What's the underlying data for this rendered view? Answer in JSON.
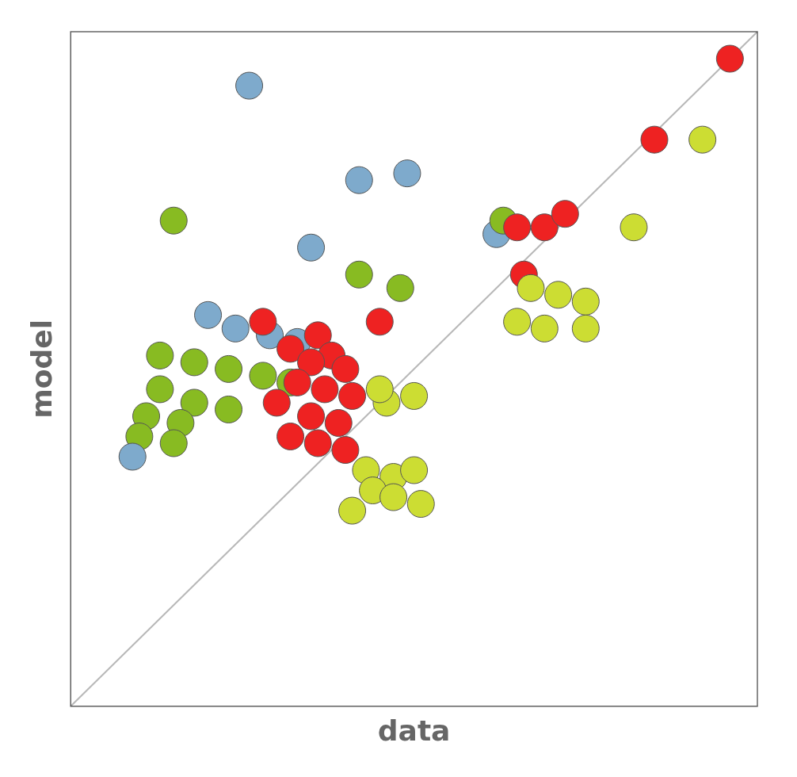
{
  "chart_data": {
    "type": "scatter",
    "xlabel": "data",
    "ylabel": "model",
    "xlim": [
      0,
      10
    ],
    "ylim": [
      0,
      10
    ],
    "xticks": [],
    "yticks": [],
    "tick_labels": false,
    "grid": false,
    "x": [
      2.6,
      1.5,
      4.2,
      4.9,
      3.5,
      4.2,
      4.8,
      2.0,
      2.4,
      2.9,
      3.3,
      1.3,
      1.8,
      2.3,
      2.8,
      3.2,
      1.3,
      1.8,
      2.3,
      1.1,
      1.6,
      1.0,
      1.5,
      0.9,
      2.8,
      3.6,
      3.2,
      3.8,
      3.5,
      4.0,
      3.3,
      3.7,
      4.1,
      3.0,
      3.5,
      3.9,
      4.5,
      3.2,
      3.6,
      4.0,
      4.6,
      4.3,
      4.7,
      5.0,
      4.4,
      4.7,
      5.1,
      4.1,
      4.5,
      5.0,
      6.2,
      6.3,
      6.5,
      6.9,
      7.2,
      8.2,
      6.6,
      6.7,
      7.1,
      7.5,
      6.5,
      6.9,
      7.5,
      8.5,
      9.2,
      9.6
    ],
    "values": [
      9.2,
      7.2,
      7.8,
      7.9,
      6.8,
      6.4,
      6.2,
      5.8,
      5.6,
      5.5,
      5.4,
      5.2,
      5.1,
      5.0,
      4.9,
      4.8,
      4.7,
      4.5,
      4.4,
      4.3,
      4.2,
      4.0,
      3.9,
      3.7,
      5.7,
      5.5,
      5.3,
      5.2,
      5.1,
      5.0,
      4.8,
      4.7,
      4.6,
      4.5,
      4.3,
      4.2,
      5.7,
      4.0,
      3.9,
      3.8,
      4.5,
      3.5,
      3.4,
      3.5,
      3.2,
      3.1,
      3.0,
      2.9,
      4.7,
      4.6,
      7.0,
      7.2,
      7.1,
      7.1,
      7.3,
      7.1,
      6.4,
      6.2,
      6.1,
      6.0,
      5.7,
      5.6,
      5.6,
      8.4,
      8.4,
      9.6
    ],
    "colors": [
      "#7eaacc",
      "#88bb22",
      "#7eaacc",
      "#7eaacc",
      "#7eaacc",
      "#88bb22",
      "#88bb22",
      "#7eaacc",
      "#7eaacc",
      "#7eaacc",
      "#7eaacc",
      "#88bb22",
      "#88bb22",
      "#88bb22",
      "#88bb22",
      "#88bb22",
      "#88bb22",
      "#88bb22",
      "#88bb22",
      "#88bb22",
      "#88bb22",
      "#88bb22",
      "#88bb22",
      "#7eaacc",
      "#ee2222",
      "#ee2222",
      "#ee2222",
      "#ee2222",
      "#ee2222",
      "#ee2222",
      "#ee2222",
      "#ee2222",
      "#ee2222",
      "#ee2222",
      "#ee2222",
      "#ee2222",
      "#ee2222",
      "#ee2222",
      "#ee2222",
      "#ee2222",
      "#ccdd33",
      "#ccdd33",
      "#ccdd33",
      "#ccdd33",
      "#ccdd33",
      "#ccdd33",
      "#ccdd33",
      "#ccdd33",
      "#ccdd33",
      "#ccdd33",
      "#7eaacc",
      "#88bb22",
      "#ee2222",
      "#ee2222",
      "#ee2222",
      "#ccdd33",
      "#ee2222",
      "#ccdd33",
      "#ccdd33",
      "#ccdd33",
      "#ccdd33",
      "#ccdd33",
      "#ccdd33",
      "#ee2222",
      "#ccdd33",
      "#ee2222"
    ]
  }
}
